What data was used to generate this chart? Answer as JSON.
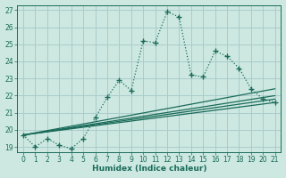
{
  "bg_color": "#cce8e0",
  "grid_color": "#aacccc",
  "line_color": "#1a6b5a",
  "x_label": "Humidex (Indice chaleur)",
  "xlim": [
    -0.5,
    21.5
  ],
  "ylim": [
    18.7,
    27.3
  ],
  "yticks": [
    19,
    20,
    21,
    22,
    23,
    24,
    25,
    26,
    27
  ],
  "xticks": [
    0,
    1,
    2,
    3,
    4,
    5,
    6,
    7,
    8,
    9,
    10,
    11,
    12,
    13,
    14,
    15,
    16,
    17,
    18,
    19,
    20,
    21
  ],
  "series1_x": [
    0,
    1,
    2,
    3,
    4,
    5,
    6,
    7,
    8,
    9,
    10,
    11,
    12,
    13,
    14,
    15,
    16,
    17,
    18,
    19,
    20,
    21
  ],
  "series1_y": [
    19.7,
    19.0,
    19.5,
    19.1,
    18.9,
    19.5,
    20.7,
    21.9,
    22.9,
    22.3,
    25.2,
    25.1,
    26.9,
    26.6,
    23.2,
    23.1,
    24.6,
    24.3,
    23.6,
    22.4,
    21.8,
    21.6
  ],
  "series2_x": [
    0,
    21
  ],
  "series2_y": [
    19.7,
    22.4
  ],
  "series3_x": [
    0,
    21
  ],
  "series3_y": [
    19.7,
    21.6
  ],
  "series4_x": [
    0,
    21
  ],
  "series4_y": [
    19.7,
    21.8
  ],
  "series5_x": [
    0,
    21
  ],
  "series5_y": [
    19.7,
    22.0
  ]
}
